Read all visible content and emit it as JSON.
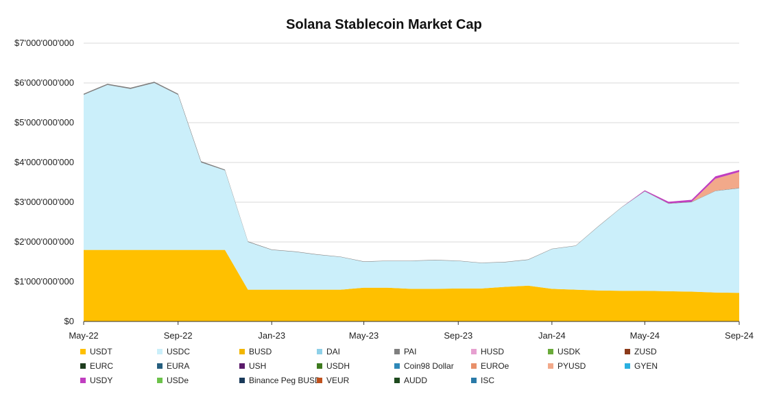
{
  "chart_data": {
    "type": "area",
    "stacked": true,
    "title": "Solana Stablecoin Market Cap",
    "xlabel": "",
    "ylabel": "",
    "ylim": [
      0,
      7000000000
    ],
    "y_ticks": [
      {
        "value": 0,
        "label": "$0"
      },
      {
        "value": 1000000000,
        "label": "$1'000'000'000"
      },
      {
        "value": 2000000000,
        "label": "$2'000'000'000"
      },
      {
        "value": 3000000000,
        "label": "$3'000'000'000"
      },
      {
        "value": 4000000000,
        "label": "$4'000'000'000"
      },
      {
        "value": 5000000000,
        "label": "$5'000'000'000"
      },
      {
        "value": 6000000000,
        "label": "$6'000'000'000"
      },
      {
        "value": 7000000000,
        "label": "$7'000'000'000"
      }
    ],
    "x_ticks": [
      {
        "value": "2022-05",
        "label": "May-22"
      },
      {
        "value": "2022-09",
        "label": "Sep-22"
      },
      {
        "value": "2023-01",
        "label": "Jan-23"
      },
      {
        "value": "2023-05",
        "label": "May-23"
      },
      {
        "value": "2023-09",
        "label": "Sep-23"
      },
      {
        "value": "2024-01",
        "label": "Jan-24"
      },
      {
        "value": "2024-05",
        "label": "May-24"
      },
      {
        "value": "2024-09",
        "label": "Sep-24"
      }
    ],
    "x": [
      "2022-05-01",
      "2022-06-01",
      "2022-07-01",
      "2022-08-01",
      "2022-09-01",
      "2022-10-01",
      "2022-11-01",
      "2022-12-01",
      "2023-01-01",
      "2023-02-01",
      "2023-03-01",
      "2023-04-01",
      "2023-05-01",
      "2023-06-01",
      "2023-07-01",
      "2023-08-01",
      "2023-09-01",
      "2023-10-01",
      "2023-11-01",
      "2023-12-01",
      "2024-01-01",
      "2024-02-01",
      "2024-03-01",
      "2024-04-01",
      "2024-05-01",
      "2024-06-01",
      "2024-07-01",
      "2024-08-01",
      "2024-09-01"
    ],
    "series": [
      {
        "name": "USDT",
        "color": "#FFC000",
        "values": [
          1800000000,
          1800000000,
          1800000000,
          1800000000,
          1800000000,
          1800000000,
          1800000000,
          800000000,
          800000000,
          800000000,
          800000000,
          800000000,
          850000000,
          850000000,
          820000000,
          820000000,
          830000000,
          830000000,
          870000000,
          900000000,
          820000000,
          800000000,
          780000000,
          770000000,
          770000000,
          760000000,
          750000000,
          730000000,
          720000000
        ]
      },
      {
        "name": "USDC",
        "color": "#CBEFFA",
        "values": [
          3900000000,
          4150000000,
          4050000000,
          4200000000,
          3900000000,
          2200000000,
          2000000000,
          1200000000,
          1000000000,
          950000000,
          880000000,
          820000000,
          650000000,
          670000000,
          700000000,
          720000000,
          690000000,
          640000000,
          620000000,
          650000000,
          1000000000,
          1100000000,
          1600000000,
          2100000000,
          2500000000,
          2200000000,
          2250000000,
          2550000000,
          2630000000
        ]
      },
      {
        "name": "BUSD",
        "color": "#F2B600",
        "values": [
          0,
          0,
          0,
          0,
          0,
          0,
          0,
          0,
          0,
          0,
          0,
          0,
          0,
          0,
          0,
          0,
          0,
          0,
          0,
          0,
          0,
          0,
          0,
          0,
          0,
          0,
          0,
          0,
          0
        ]
      },
      {
        "name": "DAI",
        "color": "#8ED0E8",
        "values": [
          0,
          0,
          0,
          0,
          0,
          0,
          0,
          0,
          0,
          0,
          0,
          0,
          0,
          0,
          0,
          0,
          0,
          0,
          0,
          0,
          0,
          0,
          0,
          0,
          0,
          0,
          0,
          0,
          0
        ]
      },
      {
        "name": "PAI",
        "color": "#7F7F7F",
        "values": [
          30000000,
          30000000,
          30000000,
          30000000,
          30000000,
          30000000,
          20000000,
          15000000,
          10000000,
          10000000,
          10000000,
          10000000,
          10000000,
          10000000,
          10000000,
          10000000,
          10000000,
          10000000,
          10000000,
          10000000,
          10000000,
          10000000,
          10000000,
          10000000,
          10000000,
          10000000,
          10000000,
          10000000,
          10000000
        ]
      },
      {
        "name": "HUSD",
        "color": "#E6A0D0",
        "values": [
          0,
          0,
          0,
          0,
          0,
          0,
          0,
          0,
          0,
          0,
          0,
          0,
          0,
          0,
          0,
          0,
          0,
          0,
          0,
          0,
          0,
          0,
          0,
          0,
          0,
          0,
          0,
          0,
          0
        ]
      },
      {
        "name": "USDK",
        "color": "#6AAA3A",
        "values": [
          0,
          0,
          0,
          0,
          0,
          0,
          0,
          0,
          0,
          0,
          0,
          0,
          0,
          0,
          0,
          0,
          0,
          0,
          0,
          0,
          0,
          0,
          0,
          0,
          0,
          0,
          0,
          0,
          0
        ]
      },
      {
        "name": "ZUSD",
        "color": "#8B3A1A",
        "values": [
          0,
          0,
          0,
          0,
          0,
          0,
          0,
          0,
          0,
          0,
          0,
          0,
          0,
          0,
          0,
          0,
          0,
          0,
          0,
          0,
          0,
          0,
          0,
          0,
          0,
          0,
          0,
          0,
          0
        ]
      },
      {
        "name": "EURC",
        "color": "#1E3D1E",
        "values": [
          0,
          0,
          0,
          0,
          0,
          0,
          0,
          0,
          0,
          0,
          0,
          0,
          0,
          0,
          0,
          0,
          0,
          0,
          0,
          0,
          0,
          0,
          0,
          0,
          0,
          0,
          0,
          0,
          0
        ]
      },
      {
        "name": "EURA",
        "color": "#255E7E",
        "values": [
          0,
          0,
          0,
          0,
          0,
          0,
          0,
          0,
          0,
          0,
          0,
          0,
          0,
          0,
          0,
          0,
          0,
          0,
          0,
          0,
          0,
          0,
          0,
          0,
          0,
          0,
          0,
          0,
          0
        ]
      },
      {
        "name": "USH",
        "color": "#5A1A6A",
        "values": [
          0,
          0,
          0,
          0,
          0,
          0,
          0,
          0,
          0,
          0,
          0,
          0,
          0,
          0,
          0,
          0,
          0,
          0,
          0,
          0,
          0,
          0,
          0,
          0,
          0,
          0,
          0,
          0,
          0
        ]
      },
      {
        "name": "USDH",
        "color": "#3D7A1E",
        "values": [
          0,
          0,
          0,
          0,
          0,
          0,
          0,
          0,
          0,
          0,
          0,
          0,
          0,
          0,
          0,
          0,
          0,
          0,
          0,
          0,
          0,
          0,
          0,
          0,
          0,
          0,
          0,
          0,
          0
        ]
      },
      {
        "name": "Coin98 Dollar",
        "color": "#2E88B8",
        "values": [
          0,
          0,
          0,
          0,
          0,
          0,
          0,
          0,
          0,
          0,
          0,
          0,
          0,
          0,
          0,
          0,
          0,
          0,
          0,
          0,
          0,
          0,
          0,
          0,
          0,
          0,
          0,
          0,
          0
        ]
      },
      {
        "name": "EUROe",
        "color": "#E8906A",
        "values": [
          0,
          0,
          0,
          0,
          0,
          0,
          0,
          0,
          0,
          0,
          0,
          0,
          0,
          0,
          0,
          0,
          0,
          0,
          0,
          0,
          0,
          0,
          0,
          0,
          0,
          0,
          0,
          0,
          0
        ]
      },
      {
        "name": "PYUSD",
        "color": "#F2A98A",
        "values": [
          0,
          0,
          0,
          0,
          0,
          0,
          0,
          0,
          0,
          0,
          0,
          0,
          0,
          0,
          0,
          0,
          0,
          0,
          0,
          0,
          0,
          0,
          0,
          0,
          0,
          0,
          0,
          300000000,
          400000000
        ]
      },
      {
        "name": "GYEN",
        "color": "#2BB0E0",
        "values": [
          0,
          0,
          0,
          0,
          0,
          0,
          0,
          0,
          0,
          0,
          0,
          0,
          0,
          0,
          0,
          0,
          0,
          0,
          0,
          0,
          0,
          0,
          0,
          0,
          0,
          0,
          0,
          0,
          0
        ]
      },
      {
        "name": "USDY",
        "color": "#C03EC0",
        "values": [
          0,
          0,
          0,
          0,
          0,
          0,
          0,
          0,
          0,
          0,
          0,
          0,
          0,
          0,
          0,
          0,
          0,
          0,
          0,
          0,
          0,
          0,
          0,
          0,
          20000000,
          40000000,
          50000000,
          60000000,
          50000000
        ]
      },
      {
        "name": "USDe",
        "color": "#6CC24A",
        "values": [
          0,
          0,
          0,
          0,
          0,
          0,
          0,
          0,
          0,
          0,
          0,
          0,
          0,
          0,
          0,
          0,
          0,
          0,
          0,
          0,
          0,
          0,
          0,
          0,
          0,
          0,
          0,
          0,
          0
        ]
      },
      {
        "name": "Binance Peg BUSD",
        "color": "#1A3A5A",
        "values": [
          0,
          0,
          0,
          0,
          0,
          0,
          0,
          0,
          0,
          0,
          0,
          0,
          0,
          0,
          0,
          0,
          0,
          0,
          0,
          0,
          0,
          0,
          0,
          0,
          0,
          0,
          0,
          0,
          0
        ]
      },
      {
        "name": "VEUR",
        "color": "#C0521E",
        "values": [
          0,
          0,
          0,
          0,
          0,
          0,
          0,
          0,
          0,
          0,
          0,
          0,
          0,
          0,
          0,
          0,
          0,
          0,
          0,
          0,
          0,
          0,
          0,
          0,
          0,
          0,
          0,
          0,
          0
        ]
      },
      {
        "name": "AUDD",
        "color": "#1E4A1E",
        "values": [
          0,
          0,
          0,
          0,
          0,
          0,
          0,
          0,
          0,
          0,
          0,
          0,
          0,
          0,
          0,
          0,
          0,
          0,
          0,
          0,
          0,
          0,
          0,
          0,
          0,
          0,
          0,
          0,
          0
        ]
      },
      {
        "name": "ISC",
        "color": "#2A7AA8",
        "values": [
          0,
          0,
          0,
          0,
          0,
          0,
          0,
          0,
          0,
          0,
          0,
          0,
          0,
          0,
          0,
          0,
          0,
          0,
          0,
          0,
          0,
          0,
          0,
          0,
          0,
          0,
          0,
          0,
          0
        ]
      }
    ],
    "grid": true,
    "legend_position": "bottom"
  }
}
